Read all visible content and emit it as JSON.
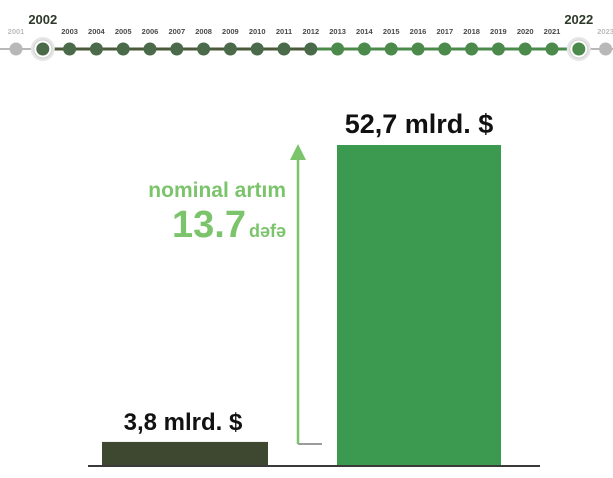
{
  "timeline": {
    "years": [
      "2001",
      "2002",
      "2003",
      "2004",
      "2005",
      "2006",
      "2007",
      "2008",
      "2009",
      "2010",
      "2011",
      "2012",
      "2013",
      "2014",
      "2015",
      "2016",
      "2017",
      "2018",
      "2019",
      "2020",
      "2021",
      "2022",
      "2023"
    ],
    "highlighted": [
      "2002",
      "2022"
    ],
    "colors": {
      "line_left": "#4a5a3a",
      "line_right": "#4c8a4c",
      "dot": "#4a6a4a",
      "faded": "#b8b8b8"
    }
  },
  "annotation": {
    "line1": "nominal artım",
    "value": "13.7",
    "unit": "dəfə",
    "color": "#7cc46c"
  },
  "chart_data": {
    "type": "bar",
    "categories": [
      "2002",
      "2022"
    ],
    "values": [
      3.8,
      52.7
    ],
    "value_labels": [
      "3,8 mlrd. $",
      "52,7 mlrd. $"
    ],
    "colors": [
      "#3e4730",
      "#3c9a50"
    ],
    "title": "",
    "xlabel": "",
    "ylabel": ""
  }
}
